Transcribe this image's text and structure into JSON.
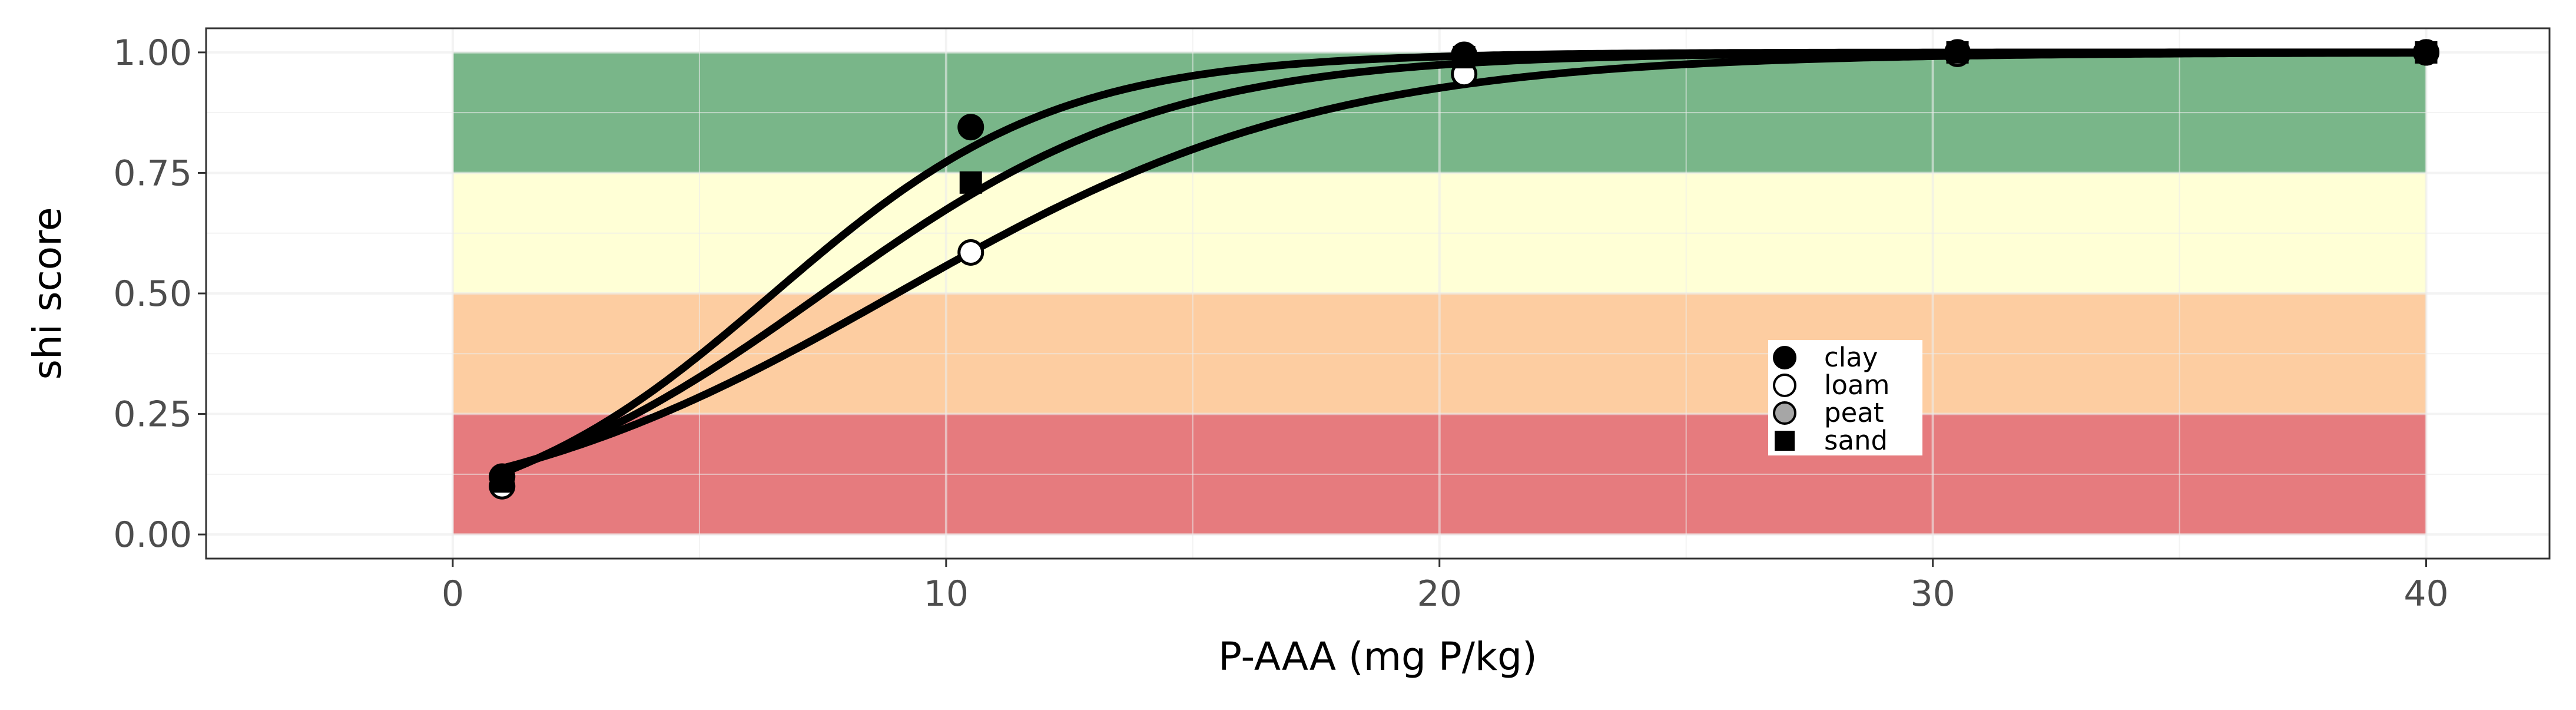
{
  "chart_data": {
    "type": "line",
    "xlabel": "P-AAA (mg P/kg)",
    "ylabel": "shi score",
    "xlim": [
      -5,
      42.5
    ],
    "ylim": [
      -0.05,
      1.05
    ],
    "x_ticks": [
      0,
      10,
      20,
      30,
      40
    ],
    "x_tick_labels": [
      "0",
      "10",
      "20",
      "30",
      "40"
    ],
    "y_ticks": [
      0,
      0.25,
      0.5,
      0.75,
      1.0
    ],
    "y_tick_labels": [
      "0.00",
      "0.25",
      "0.50",
      "0.75",
      "1.00"
    ],
    "grid": true,
    "bands": [
      {
        "from": 0.0,
        "to": 0.25,
        "color": "#e05a5e"
      },
      {
        "from": 0.25,
        "to": 0.5,
        "color": "#fdc089"
      },
      {
        "from": 0.5,
        "to": 0.75,
        "color": "#ffffcc"
      },
      {
        "from": 0.75,
        "to": 1.0,
        "color": "#57a46b"
      }
    ],
    "band_x_range": [
      0,
      40
    ],
    "series": [
      {
        "name": "clay",
        "marker": "circle",
        "fill": "#000000",
        "curve": {
          "k": 0.35,
          "x0": 6.5
        },
        "points": [
          {
            "x": 1,
            "y": 0.12
          },
          {
            "x": 10.5,
            "y": 0.845
          },
          {
            "x": 20.5,
            "y": 0.995
          },
          {
            "x": 30.5,
            "y": 1.0
          },
          {
            "x": 40,
            "y": 1.0
          }
        ]
      },
      {
        "name": "loam",
        "marker": "circle",
        "fill": "#ffffff",
        "curve": {
          "k": 0.23,
          "x0": 9.0
        },
        "points": [
          {
            "x": 1,
            "y": 0.1
          },
          {
            "x": 10.5,
            "y": 0.585
          },
          {
            "x": 20.5,
            "y": 0.955
          },
          {
            "x": 30.5,
            "y": 0.997
          },
          {
            "x": 40,
            "y": 1.0
          }
        ]
      },
      {
        "name": "peat",
        "marker": "circle",
        "fill": "#a6a6a6",
        "curve": {
          "k": 0.29,
          "x0": 7.5
        },
        "points": []
      },
      {
        "name": "sand",
        "marker": "square",
        "fill": "#000000",
        "curve": {
          "k": 0.29,
          "x0": 7.5
        },
        "points": [
          {
            "x": 1,
            "y": 0.11
          },
          {
            "x": 10.5,
            "y": 0.73
          },
          {
            "x": 20.5,
            "y": 0.99
          },
          {
            "x": 30.5,
            "y": 1.0
          },
          {
            "x": 40,
            "y": 1.0
          }
        ]
      }
    ],
    "legend": {
      "placement": "inside-bottom-right",
      "entries": [
        "clay",
        "loam",
        "peat",
        "sand"
      ]
    }
  }
}
